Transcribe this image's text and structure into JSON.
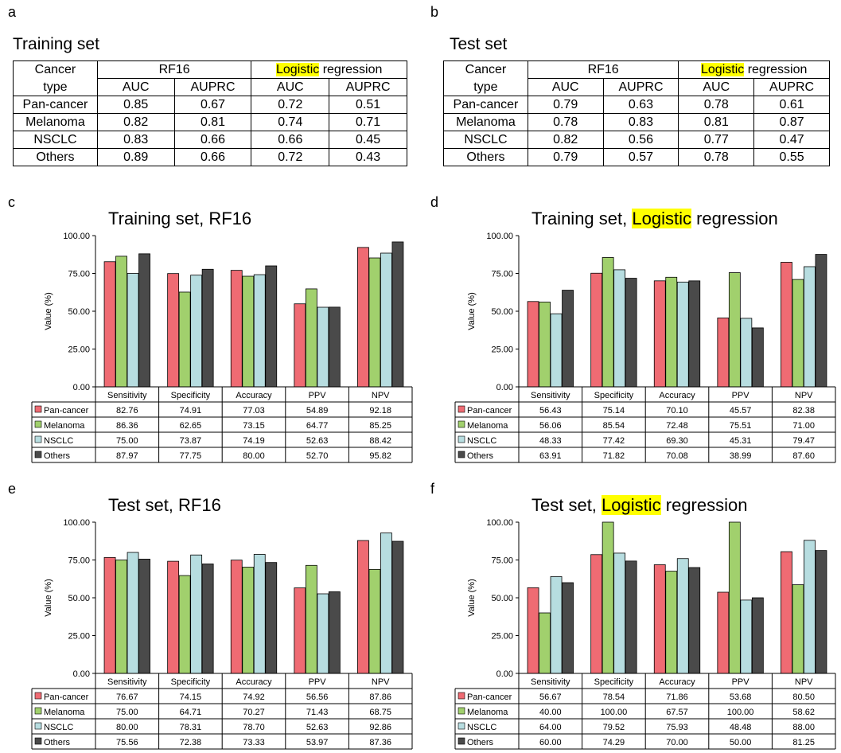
{
  "panels": {
    "a": "a",
    "b": "b",
    "c": "c",
    "d": "d",
    "e": "e",
    "f": "f"
  },
  "tables": [
    {
      "title": "Training set",
      "col_header_1": "Cancer",
      "col_header_2": "type",
      "group1": "RF16",
      "group2_hl": "Logistic",
      "group2_rest": " regression",
      "subheaders": [
        "AUC",
        "AUPRC",
        "AUC",
        "AUPRC"
      ],
      "rows": [
        {
          "name": "Pan-cancer",
          "values": [
            "0.85",
            "0.67",
            "0.72",
            "0.51"
          ]
        },
        {
          "name": "Melanoma",
          "values": [
            "0.82",
            "0.81",
            "0.74",
            "0.71"
          ]
        },
        {
          "name": "NSCLC",
          "values": [
            "0.83",
            "0.66",
            "0.66",
            "0.45"
          ]
        },
        {
          "name": "Others",
          "values": [
            "0.89",
            "0.66",
            "0.72",
            "0.43"
          ]
        }
      ]
    },
    {
      "title": "Test set",
      "col_header_1": "Cancer",
      "col_header_2": "type",
      "group1": "RF16",
      "group2_hl": "Logistic",
      "group2_rest": " regression",
      "subheaders": [
        "AUC",
        "AUPRC",
        "AUC",
        "AUPRC"
      ],
      "rows": [
        {
          "name": "Pan-cancer",
          "values": [
            "0.79",
            "0.63",
            "0.78",
            "0.61"
          ]
        },
        {
          "name": "Melanoma",
          "values": [
            "0.78",
            "0.83",
            "0.81",
            "0.87"
          ]
        },
        {
          "name": "NSCLC",
          "values": [
            "0.82",
            "0.56",
            "0.77",
            "0.47"
          ]
        },
        {
          "name": "Others",
          "values": [
            "0.79",
            "0.57",
            "0.78",
            "0.55"
          ]
        }
      ]
    }
  ],
  "colors": {
    "Pan-cancer": "#ef6b73",
    "Melanoma": "#a1d06d",
    "NSCLC": "#b7dde0",
    "Others": "#4a4a4a",
    "highlight": "#ffff00"
  },
  "chart_data": [
    {
      "type": "bar",
      "title_parts": [
        "Training set, RF16"
      ],
      "ylabel": "Value (%)",
      "ylim": [
        0,
        100
      ],
      "yticks": [
        "0.00",
        "25.00",
        "50.00",
        "75.00",
        "100.00"
      ],
      "categories": [
        "Sensitivity",
        "Specificity",
        "Accuracy",
        "PPV",
        "NPV"
      ],
      "series": [
        {
          "name": "Pan-cancer",
          "values": [
            82.76,
            74.91,
            77.03,
            54.89,
            92.18
          ],
          "labels": [
            "82.76",
            "74.91",
            "77.03",
            "54.89",
            "92.18"
          ]
        },
        {
          "name": "Melanoma",
          "values": [
            86.36,
            62.65,
            73.15,
            64.77,
            85.25
          ],
          "labels": [
            "86.36",
            "62.65",
            "73.15",
            "64.77",
            "85.25"
          ]
        },
        {
          "name": "NSCLC",
          "values": [
            75.0,
            73.87,
            74.19,
            52.63,
            88.42
          ],
          "labels": [
            "75.00",
            "73.87",
            "74.19",
            "52.63",
            "88.42"
          ]
        },
        {
          "name": "Others",
          "values": [
            87.97,
            77.75,
            80.0,
            52.7,
            95.82
          ],
          "labels": [
            "87.97",
            "77.75",
            "80.00",
            "52.70",
            "95.82"
          ]
        }
      ]
    },
    {
      "type": "bar",
      "title_parts": [
        "Training set, ",
        "Logistic",
        " regression"
      ],
      "ylabel": "Value (%)",
      "ylim": [
        0,
        100
      ],
      "yticks": [
        "0.00",
        "25.00",
        "50.00",
        "75.00",
        "100.00"
      ],
      "categories": [
        "Sensitivity",
        "Specificity",
        "Accuracy",
        "PPV",
        "NPV"
      ],
      "series": [
        {
          "name": "Pan-cancer",
          "values": [
            56.43,
            75.14,
            70.1,
            45.57,
            82.38
          ],
          "labels": [
            "56.43",
            "75.14",
            "70.10",
            "45.57",
            "82.38"
          ]
        },
        {
          "name": "Melanoma",
          "values": [
            56.06,
            85.54,
            72.48,
            75.51,
            71.0
          ],
          "labels": [
            "56.06",
            "85.54",
            "72.48",
            "75.51",
            "71.00"
          ]
        },
        {
          "name": "NSCLC",
          "values": [
            48.33,
            77.42,
            69.3,
            45.31,
            79.47
          ],
          "labels": [
            "48.33",
            "77.42",
            "69.30",
            "45.31",
            "79.47"
          ]
        },
        {
          "name": "Others",
          "values": [
            63.91,
            71.82,
            70.08,
            38.99,
            87.6
          ],
          "labels": [
            "63.91",
            "71.82",
            "70.08",
            "38.99",
            "87.60"
          ]
        }
      ]
    },
    {
      "type": "bar",
      "title_parts": [
        "Test set, RF16"
      ],
      "ylabel": "Value (%)",
      "ylim": [
        0,
        100
      ],
      "yticks": [
        "0.00",
        "25.00",
        "50.00",
        "75.00",
        "100.00"
      ],
      "categories": [
        "Sensitivity",
        "Specificity",
        "Accuracy",
        "PPV",
        "NPV"
      ],
      "series": [
        {
          "name": "Pan-cancer",
          "values": [
            76.67,
            74.15,
            74.92,
            56.56,
            87.86
          ],
          "labels": [
            "76.67",
            "74.15",
            "74.92",
            "56.56",
            "87.86"
          ]
        },
        {
          "name": "Melanoma",
          "values": [
            75.0,
            64.71,
            70.27,
            71.43,
            68.75
          ],
          "labels": [
            "75.00",
            "64.71",
            "70.27",
            "71.43",
            "68.75"
          ]
        },
        {
          "name": "NSCLC",
          "values": [
            80.0,
            78.31,
            78.7,
            52.63,
            92.86
          ],
          "labels": [
            "80.00",
            "78.31",
            "78.70",
            "52.63",
            "92.86"
          ]
        },
        {
          "name": "Others",
          "values": [
            75.56,
            72.38,
            73.33,
            53.97,
            87.36
          ],
          "labels": [
            "75.56",
            "72.38",
            "73.33",
            "53.97",
            "87.36"
          ]
        }
      ]
    },
    {
      "type": "bar",
      "title_parts": [
        "Test set, ",
        "Logistic",
        " regression"
      ],
      "ylabel": "Value (%)",
      "ylim": [
        0,
        100
      ],
      "yticks": [
        "0.00",
        "25.00",
        "50.00",
        "75.00",
        "100.00"
      ],
      "categories": [
        "Sensitivity",
        "Specificity",
        "Accuracy",
        "PPV",
        "NPV"
      ],
      "series": [
        {
          "name": "Pan-cancer",
          "values": [
            56.67,
            78.54,
            71.86,
            53.68,
            80.5
          ],
          "labels": [
            "56.67",
            "78.54",
            "71.86",
            "53.68",
            "80.50"
          ]
        },
        {
          "name": "Melanoma",
          "values": [
            40.0,
            100.0,
            67.57,
            100.0,
            58.62
          ],
          "labels": [
            "40.00",
            "100.00",
            "67.57",
            "100.00",
            "58.62"
          ]
        },
        {
          "name": "NSCLC",
          "values": [
            64.0,
            79.52,
            75.93,
            48.48,
            88.0
          ],
          "labels": [
            "64.00",
            "79.52",
            "75.93",
            "48.48",
            "88.00"
          ]
        },
        {
          "name": "Others",
          "values": [
            60.0,
            74.29,
            70.0,
            50.0,
            81.25
          ],
          "labels": [
            "60.00",
            "74.29",
            "70.00",
            "50.00",
            "81.25"
          ]
        }
      ]
    }
  ]
}
